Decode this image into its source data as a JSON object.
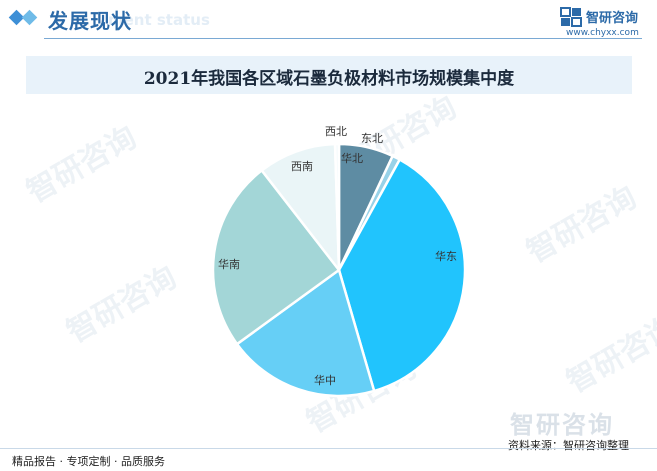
{
  "header": {
    "title": "发展现状",
    "subtitle": "ment status",
    "brand_name": "智研咨询",
    "brand_url": "www.chyxx.com"
  },
  "watermark_text": "智研咨询",
  "chart_data": {
    "type": "pie",
    "title": "2021年我国各区域石墨负极材料市场规模集中度",
    "slices": [
      {
        "label": "华北",
        "value": 7.0,
        "color": "#5e8ca3"
      },
      {
        "label": "东北",
        "value": 1.0,
        "color": "#98d2e8"
      },
      {
        "label": "华东",
        "value": 37.5,
        "color": "#21c4fd"
      },
      {
        "label": "华中",
        "value": 19.5,
        "color": "#66cff6"
      },
      {
        "label": "华南",
        "value": 24.5,
        "color": "#a3d6d7"
      },
      {
        "label": "西南",
        "value": 10.0,
        "color": "#eaf5f7"
      },
      {
        "label": "西北",
        "value": 0.5,
        "color": "#f5fbfc"
      }
    ]
  },
  "footer": {
    "left": "精品报告 · 专项定制 · 品质服务",
    "right": "资料来源：智研咨询整理",
    "logo_text": "智研咨询"
  }
}
